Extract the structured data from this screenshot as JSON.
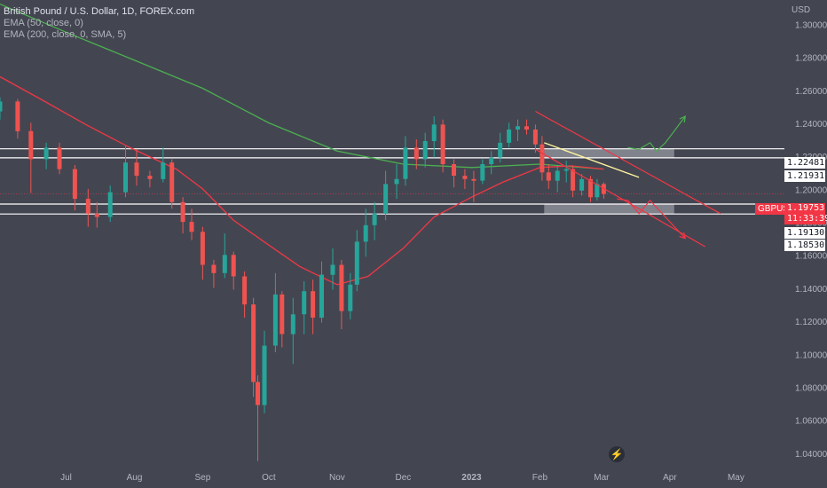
{
  "legend": {
    "title": "British Pound / U.S. Dollar, 1D, FOREX.com",
    "ema50": "EMA (50, close, 0)",
    "ema200": "EMA (200, close, 0, SMA, 5)"
  },
  "currency_label": "USD",
  "symbol_badge": "GBPUSD",
  "current_price": "1.19753",
  "countdown": "11:33:39",
  "level_labels": [
    "1.22481",
    "1.21931",
    "1.19130",
    "1.18530"
  ],
  "logo_icon": "lightning-logo-icon",
  "colors": {
    "background": "#434651",
    "up": "#26a69a",
    "down": "#ef5350",
    "ema50": "#f23645",
    "ema200": "#4caf50",
    "levels": "#ffffff",
    "channel": "#f23645",
    "projection_up": "#4caf50",
    "projection_down": "#f23645",
    "trendline": "#fff59d",
    "zone": "#b2b5be"
  },
  "chart_data": {
    "type": "candlestick",
    "title": "British Pound / U.S. Dollar, 1D, FOREX.com",
    "ylabel": "USD",
    "ylim": [
      1.03,
      1.315
    ],
    "y_ticks": [
      "1.04000",
      "1.06000",
      "1.08000",
      "1.10000",
      "1.12000",
      "1.14000",
      "1.16000",
      "1.18000",
      "1.20000",
      "1.22000",
      "1.24000",
      "1.26000",
      "1.28000",
      "1.30000"
    ],
    "x_labels": [
      "Jul",
      "Aug",
      "Sep",
      "Oct",
      "Nov",
      "Dec",
      "2023",
      "Feb",
      "Mar",
      "Apr",
      "May"
    ],
    "x_label_dates": [
      "2022-07-01",
      "2022-08-01",
      "2022-09-01",
      "2022-10-01",
      "2022-11-01",
      "2022-12-01",
      "2023-01-01",
      "2023-02-01",
      "2023-03-01",
      "2023-04-01",
      "2023-05-01"
    ],
    "date_range": [
      "2022-06-01",
      "2023-05-23"
    ],
    "candles": [
      {
        "date": "2022-06-01",
        "open": 1.2475,
        "high": 1.256,
        "low": 1.2425,
        "close": 1.2535
      },
      {
        "date": "2022-06-09",
        "open": 1.2535,
        "high": 1.255,
        "low": 1.231,
        "close": 1.2355
      },
      {
        "date": "2022-06-15",
        "open": 1.2355,
        "high": 1.2405,
        "low": 1.198,
        "close": 1.2185
      },
      {
        "date": "2022-06-22",
        "open": 1.2185,
        "high": 1.2285,
        "low": 1.2125,
        "close": 1.2255
      },
      {
        "date": "2022-06-28",
        "open": 1.2255,
        "high": 1.2285,
        "low": 1.2095,
        "close": 1.2125
      },
      {
        "date": "2022-07-05",
        "open": 1.2125,
        "high": 1.215,
        "low": 1.1875,
        "close": 1.1945
      },
      {
        "date": "2022-07-11",
        "open": 1.1945,
        "high": 1.2005,
        "low": 1.1775,
        "close": 1.1855
      },
      {
        "date": "2022-07-15",
        "open": 1.1855,
        "high": 1.1925,
        "low": 1.177,
        "close": 1.1835
      },
      {
        "date": "2022-07-21",
        "open": 1.1835,
        "high": 1.2025,
        "low": 1.1805,
        "close": 1.1985
      },
      {
        "date": "2022-07-28",
        "open": 1.1985,
        "high": 1.2265,
        "low": 1.1955,
        "close": 1.2165
      },
      {
        "date": "2022-08-02",
        "open": 1.2165,
        "high": 1.2245,
        "low": 1.2025,
        "close": 1.2085
      },
      {
        "date": "2022-08-08",
        "open": 1.2085,
        "high": 1.2115,
        "low": 1.2015,
        "close": 1.2065
      },
      {
        "date": "2022-08-14",
        "open": 1.2065,
        "high": 1.2255,
        "low": 1.2045,
        "close": 1.2165
      },
      {
        "date": "2022-08-18",
        "open": 1.2165,
        "high": 1.2185,
        "low": 1.1885,
        "close": 1.1925
      },
      {
        "date": "2022-08-23",
        "open": 1.1925,
        "high": 1.1955,
        "low": 1.1735,
        "close": 1.1805
      },
      {
        "date": "2022-08-27",
        "open": 1.1805,
        "high": 1.1885,
        "low": 1.1695,
        "close": 1.1745
      },
      {
        "date": "2022-09-01",
        "open": 1.1745,
        "high": 1.1775,
        "low": 1.1455,
        "close": 1.1545
      },
      {
        "date": "2022-09-06",
        "open": 1.1545,
        "high": 1.1575,
        "low": 1.1405,
        "close": 1.1495
      },
      {
        "date": "2022-09-11",
        "open": 1.1495,
        "high": 1.1735,
        "low": 1.1465,
        "close": 1.1605
      },
      {
        "date": "2022-09-15",
        "open": 1.1605,
        "high": 1.1625,
        "low": 1.1395,
        "close": 1.1475
      },
      {
        "date": "2022-09-20",
        "open": 1.1475,
        "high": 1.1505,
        "low": 1.1225,
        "close": 1.1305
      },
      {
        "date": "2022-09-24",
        "open": 1.1305,
        "high": 1.1345,
        "low": 1.0745,
        "close": 1.0835
      },
      {
        "date": "2022-09-26",
        "open": 1.0835,
        "high": 1.0875,
        "low": 1.0355,
        "close": 1.0695
      },
      {
        "date": "2022-09-29",
        "open": 1.0695,
        "high": 1.1145,
        "low": 1.0645,
        "close": 1.1055
      },
      {
        "date": "2022-10-04",
        "open": 1.1055,
        "high": 1.1495,
        "low": 1.1015,
        "close": 1.1365
      },
      {
        "date": "2022-10-07",
        "open": 1.1365,
        "high": 1.1385,
        "low": 1.1045,
        "close": 1.1125
      },
      {
        "date": "2022-10-12",
        "open": 1.1125,
        "high": 1.1345,
        "low": 1.0945,
        "close": 1.1245
      },
      {
        "date": "2022-10-17",
        "open": 1.1245,
        "high": 1.1445,
        "low": 1.1125,
        "close": 1.1385
      },
      {
        "date": "2022-10-21",
        "open": 1.1385,
        "high": 1.1455,
        "low": 1.1125,
        "close": 1.1225
      },
      {
        "date": "2022-10-25",
        "open": 1.1225,
        "high": 1.1565,
        "low": 1.1195,
        "close": 1.1485
      },
      {
        "date": "2022-10-30",
        "open": 1.1485,
        "high": 1.1645,
        "low": 1.1395,
        "close": 1.1545
      },
      {
        "date": "2022-11-03",
        "open": 1.1545,
        "high": 1.1575,
        "low": 1.1155,
        "close": 1.1265
      },
      {
        "date": "2022-11-07",
        "open": 1.1265,
        "high": 1.1495,
        "low": 1.1215,
        "close": 1.1425
      },
      {
        "date": "2022-11-10",
        "open": 1.1425,
        "high": 1.1755,
        "low": 1.1385,
        "close": 1.1685
      },
      {
        "date": "2022-11-14",
        "open": 1.1685,
        "high": 1.1885,
        "low": 1.1595,
        "close": 1.1785
      },
      {
        "date": "2022-11-18",
        "open": 1.1785,
        "high": 1.1925,
        "low": 1.1695,
        "close": 1.1855
      },
      {
        "date": "2022-11-23",
        "open": 1.1855,
        "high": 1.2115,
        "low": 1.1815,
        "close": 1.2035
      },
      {
        "date": "2022-11-28",
        "open": 1.2035,
        "high": 1.2155,
        "low": 1.1945,
        "close": 1.2065
      },
      {
        "date": "2022-12-02",
        "open": 1.2065,
        "high": 1.2325,
        "low": 1.2025,
        "close": 1.2255
      },
      {
        "date": "2022-12-07",
        "open": 1.2255,
        "high": 1.2305,
        "low": 1.2125,
        "close": 1.2185
      },
      {
        "date": "2022-12-11",
        "open": 1.2185,
        "high": 1.2345,
        "low": 1.2135,
        "close": 1.2295
      },
      {
        "date": "2022-12-15",
        "open": 1.2295,
        "high": 1.2445,
        "low": 1.2195,
        "close": 1.2395
      },
      {
        "date": "2022-12-19",
        "open": 1.2395,
        "high": 1.2425,
        "low": 1.2105,
        "close": 1.2155
      },
      {
        "date": "2022-12-24",
        "open": 1.2155,
        "high": 1.2185,
        "low": 1.2015,
        "close": 1.2085
      },
      {
        "date": "2022-12-29",
        "open": 1.2085,
        "high": 1.2125,
        "low": 1.2005,
        "close": 1.2065
      },
      {
        "date": "2023-01-02",
        "open": 1.2065,
        "high": 1.2115,
        "low": 1.1925,
        "close": 1.2055
      },
      {
        "date": "2023-01-06",
        "open": 1.2055,
        "high": 1.2185,
        "low": 1.2035,
        "close": 1.2155
      },
      {
        "date": "2023-01-10",
        "open": 1.2155,
        "high": 1.2235,
        "low": 1.2095,
        "close": 1.2195
      },
      {
        "date": "2023-01-14",
        "open": 1.2195,
        "high": 1.2345,
        "low": 1.2165,
        "close": 1.2285
      },
      {
        "date": "2023-01-18",
        "open": 1.2285,
        "high": 1.2405,
        "low": 1.2255,
        "close": 1.2365
      },
      {
        "date": "2023-01-22",
        "open": 1.2365,
        "high": 1.2425,
        "low": 1.2295,
        "close": 1.2385
      },
      {
        "date": "2023-01-26",
        "open": 1.2385,
        "high": 1.2425,
        "low": 1.2335,
        "close": 1.2365
      },
      {
        "date": "2023-01-30",
        "open": 1.2365,
        "high": 1.2395,
        "low": 1.2225,
        "close": 1.2275
      },
      {
        "date": "2023-02-02",
        "open": 1.2275,
        "high": 1.2325,
        "low": 1.2055,
        "close": 1.2105
      },
      {
        "date": "2023-02-05",
        "open": 1.2105,
        "high": 1.2155,
        "low": 1.2005,
        "close": 1.2055
      },
      {
        "date": "2023-02-09",
        "open": 1.2055,
        "high": 1.2145,
        "low": 1.1985,
        "close": 1.2115
      },
      {
        "date": "2023-02-13",
        "open": 1.2115,
        "high": 1.2175,
        "low": 1.2045,
        "close": 1.2125
      },
      {
        "date": "2023-02-16",
        "open": 1.2125,
        "high": 1.2145,
        "low": 1.1955,
        "close": 1.1995
      },
      {
        "date": "2023-02-20",
        "open": 1.1995,
        "high": 1.2095,
        "low": 1.1965,
        "close": 1.2065
      },
      {
        "date": "2023-02-24",
        "open": 1.2065,
        "high": 1.2085,
        "low": 1.1925,
        "close": 1.1955
      },
      {
        "date": "2023-02-27",
        "open": 1.1955,
        "high": 1.2065,
        "low": 1.1935,
        "close": 1.2035
      },
      {
        "date": "2023-03-02",
        "open": 1.2035,
        "high": 1.2045,
        "low": 1.1945,
        "close": 1.1975
      }
    ],
    "ema50": [
      [
        "2022-06-01",
        1.2685
      ],
      [
        "2022-06-20",
        1.2545
      ],
      [
        "2022-07-10",
        1.2395
      ],
      [
        "2022-07-30",
        1.2255
      ],
      [
        "2022-08-20",
        1.2125
      ],
      [
        "2022-09-01",
        1.2005
      ],
      [
        "2022-09-15",
        1.1815
      ],
      [
        "2022-10-01",
        1.1665
      ],
      [
        "2022-10-15",
        1.1535
      ],
      [
        "2022-11-01",
        1.1425
      ],
      [
        "2022-11-15",
        1.1475
      ],
      [
        "2022-12-01",
        1.1645
      ],
      [
        "2022-12-15",
        1.1835
      ],
      [
        "2023-01-01",
        1.1955
      ],
      [
        "2023-01-15",
        1.2045
      ],
      [
        "2023-02-01",
        1.2135
      ],
      [
        "2023-02-15",
        1.2145
      ],
      [
        "2023-03-02",
        1.2125
      ]
    ],
    "ema200": [
      [
        "2022-06-01",
        1.3125
      ],
      [
        "2022-07-01",
        1.2955
      ],
      [
        "2022-08-01",
        1.2785
      ],
      [
        "2022-09-01",
        1.2615
      ],
      [
        "2022-10-01",
        1.2405
      ],
      [
        "2022-11-01",
        1.2235
      ],
      [
        "2022-12-01",
        1.2155
      ],
      [
        "2023-01-01",
        1.2135
      ],
      [
        "2023-02-01",
        1.2155
      ],
      [
        "2023-03-02",
        1.2125
      ]
    ],
    "levels": [
      1.22481,
      1.21931,
      1.1913,
      1.1853
    ],
    "current_price": 1.19753,
    "channel_upper": [
      [
        "2023-01-30",
        1.2475
      ],
      [
        "2023-04-24",
        1.1855
      ]
    ],
    "channel_lower": [
      [
        "2023-01-30",
        1.2245
      ],
      [
        "2023-04-17",
        1.1655
      ]
    ],
    "trendline": [
      [
        "2023-02-03",
        1.2285
      ],
      [
        "2023-03-18",
        1.2075
      ]
    ],
    "zone_top": {
      "start": "2023-02-03",
      "end": "2023-04-03",
      "high": 1.22481,
      "low": 1.21931
    },
    "zone_bottom": {
      "start": "2023-02-03",
      "end": "2023-04-03",
      "high": 1.1913,
      "low": 1.1853
    },
    "projection_up": [
      [
        "2023-03-13",
        1.2255
      ],
      [
        "2023-03-18",
        1.2245
      ],
      [
        "2023-03-23",
        1.2285
      ],
      [
        "2023-03-26",
        1.2235
      ],
      [
        "2023-03-30",
        1.2285
      ],
      [
        "2023-04-08",
        1.2445
      ]
    ],
    "projection_down": [
      [
        "2023-03-08",
        1.1945
      ],
      [
        "2023-03-13",
        1.1935
      ],
      [
        "2023-03-18",
        1.1855
      ],
      [
        "2023-03-23",
        1.1935
      ],
      [
        "2023-04-08",
        1.1705
      ]
    ]
  }
}
